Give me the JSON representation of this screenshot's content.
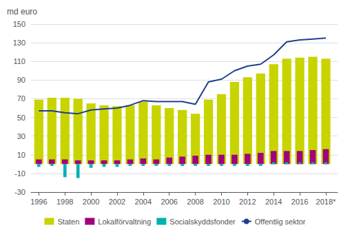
{
  "chart_data": {
    "type": "bar",
    "ylabel": "md euro",
    "x": [
      1996,
      1997,
      1998,
      1999,
      2000,
      2001,
      2002,
      2003,
      2004,
      2005,
      2006,
      2007,
      2008,
      2009,
      2010,
      2011,
      2012,
      2013,
      2014,
      2015,
      2016,
      2017,
      2018
    ],
    "xlim": [
      1995.4,
      2018.9
    ],
    "xticks": [
      1996,
      1998,
      2000,
      2002,
      2004,
      2006,
      2008,
      2010,
      2012,
      2014,
      2016,
      {
        "value": 2018,
        "label": "2018*"
      }
    ],
    "ylim": [
      -30,
      150
    ],
    "yticks": [
      -30,
      -10,
      10,
      30,
      50,
      70,
      90,
      110,
      130,
      150
    ],
    "grid": true,
    "legend": "bottom",
    "series": [
      {
        "name": "Staten",
        "type": "bar",
        "color": "#c8d400",
        "values": [
          69,
          71,
          71,
          70,
          65,
          63,
          62,
          63,
          67,
          63,
          60,
          58,
          54,
          69,
          75,
          88,
          93,
          97,
          107,
          113,
          114,
          115,
          113
        ]
      },
      {
        "name": "Lokalförvaltning",
        "type": "bar",
        "color": "#a0007f",
        "values": [
          5,
          5,
          5,
          4,
          4,
          4,
          4,
          5,
          6,
          5,
          7,
          8,
          9,
          10,
          10,
          10,
          11,
          12,
          14,
          14,
          14,
          15,
          16
        ]
      },
      {
        "name": "Socialskyddsfonder",
        "type": "bar",
        "color": "#00b0b0",
        "values": [
          -3,
          -2,
          -14,
          -15,
          -4,
          -3,
          -3,
          -2,
          -2,
          -2,
          -2,
          -2,
          -2,
          -2,
          -2,
          -2,
          -2,
          -2,
          2,
          2,
          2,
          2,
          2
        ]
      },
      {
        "name": "Offentlig sektor",
        "type": "line",
        "color": "#1f3e8c",
        "values": [
          57,
          57,
          55,
          54,
          58,
          59,
          60,
          63,
          68,
          67,
          67,
          67,
          64,
          88,
          91,
          100,
          105,
          107,
          117,
          131,
          133,
          134,
          135
        ]
      }
    ]
  }
}
